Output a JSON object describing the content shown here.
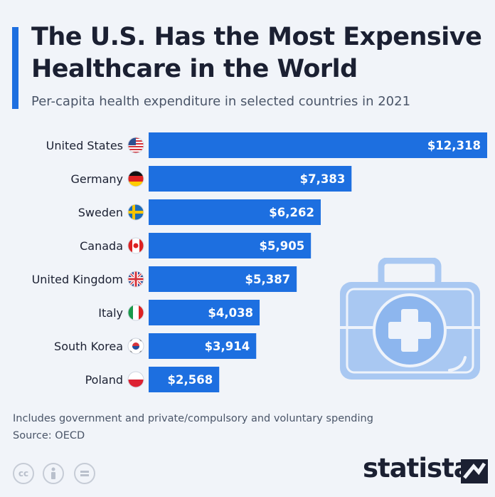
{
  "title": "The U.S. Has the Most Expensive Healthcare in the World",
  "subtitle": "Per-capita health expenditure in selected countries in 2021",
  "footnote": "Includes government and private/compulsory and voluntary spending",
  "source": "Source: OECD",
  "brand": "statista",
  "license_icons": [
    "creative-commons-icon",
    "attribution-icon",
    "no-derivatives-icon"
  ],
  "colors": {
    "bar": "#1d6fe0",
    "accent": "#1d6fe0",
    "illustration": "#a9c8f2"
  },
  "chart_data": {
    "type": "bar",
    "orientation": "horizontal",
    "categories": [
      "United States",
      "Germany",
      "Sweden",
      "Canada",
      "United Kingdom",
      "Italy",
      "South Korea",
      "Poland"
    ],
    "values": [
      12318,
      7383,
      6262,
      5905,
      5387,
      4038,
      3914,
      2568
    ],
    "value_labels": [
      "$12,318",
      "$7,383",
      "$6,262",
      "$5,905",
      "$5,387",
      "$4,038",
      "$3,914",
      "$2,568"
    ],
    "flags": [
      "us-flag-icon",
      "germany-flag-icon",
      "sweden-flag-icon",
      "canada-flag-icon",
      "uk-flag-icon",
      "italy-flag-icon",
      "south-korea-flag-icon",
      "poland-flag-icon"
    ],
    "title": "",
    "xlabel": "",
    "ylabel": ""
  }
}
